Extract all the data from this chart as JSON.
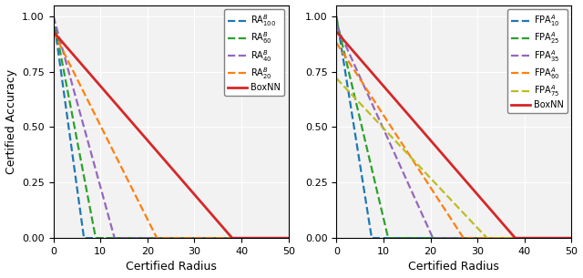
{
  "left": {
    "curves": [
      {
        "label": "RA$^{B}_{100}$",
        "color": "#1f77b4",
        "linestyle": "--",
        "k": 6.5,
        "y0": 1.0,
        "lw": 1.6
      },
      {
        "label": "RA$^{B}_{60}$",
        "color": "#2ca02c",
        "linestyle": "--",
        "k": 9.0,
        "y0": 1.0,
        "lw": 1.6
      },
      {
        "label": "RA$^{B}_{40}$",
        "color": "#9467bd",
        "linestyle": "--",
        "k": 13.0,
        "y0": 1.0,
        "lw": 1.6
      },
      {
        "label": "RA$^{B}_{20}$",
        "color": "#ff7f0e",
        "linestyle": "--",
        "k": 22.0,
        "y0": 0.93,
        "lw": 1.6
      },
      {
        "label": "BoxNN",
        "color": "#d62728",
        "linestyle": "-",
        "k": 38.0,
        "y0": 0.93,
        "lw": 2.0
      }
    ]
  },
  "right": {
    "curves": [
      {
        "label": "FPA$^{A}_{10}$",
        "color": "#1f77b4",
        "linestyle": "--",
        "k": 7.5,
        "y0": 1.0,
        "lw": 1.6
      },
      {
        "label": "FPA$^{A}_{25}$",
        "color": "#2ca02c",
        "linestyle": "--",
        "k": 11.0,
        "y0": 0.985,
        "lw": 1.6
      },
      {
        "label": "FPA$^{A}_{35}$",
        "color": "#9467bd",
        "linestyle": "--",
        "k": 20.5,
        "y0": 0.96,
        "lw": 1.6
      },
      {
        "label": "FPA$^{A}_{60}$",
        "color": "#ff7f0e",
        "linestyle": "--",
        "k": 27.0,
        "y0": 0.88,
        "lw": 1.6
      },
      {
        "label": "FPA$^{A}_{75}$",
        "color": "#bcbd22",
        "linestyle": "--",
        "k": 32.0,
        "y0": 0.72,
        "lw": 1.6
      },
      {
        "label": "BoxNN",
        "color": "#d62728",
        "linestyle": "-",
        "k": 38.0,
        "y0": 0.93,
        "lw": 2.0
      }
    ]
  },
  "xlabel": "Certified Radius",
  "ylabel": "Certified Accuracy",
  "xlim": [
    0,
    50
  ],
  "ylim": [
    0,
    1.05
  ],
  "yticks": [
    0.0,
    0.25,
    0.5,
    0.75,
    1.0
  ],
  "xticks": [
    0,
    10,
    20,
    30,
    40,
    50
  ],
  "background_color": "#f2f2f2"
}
